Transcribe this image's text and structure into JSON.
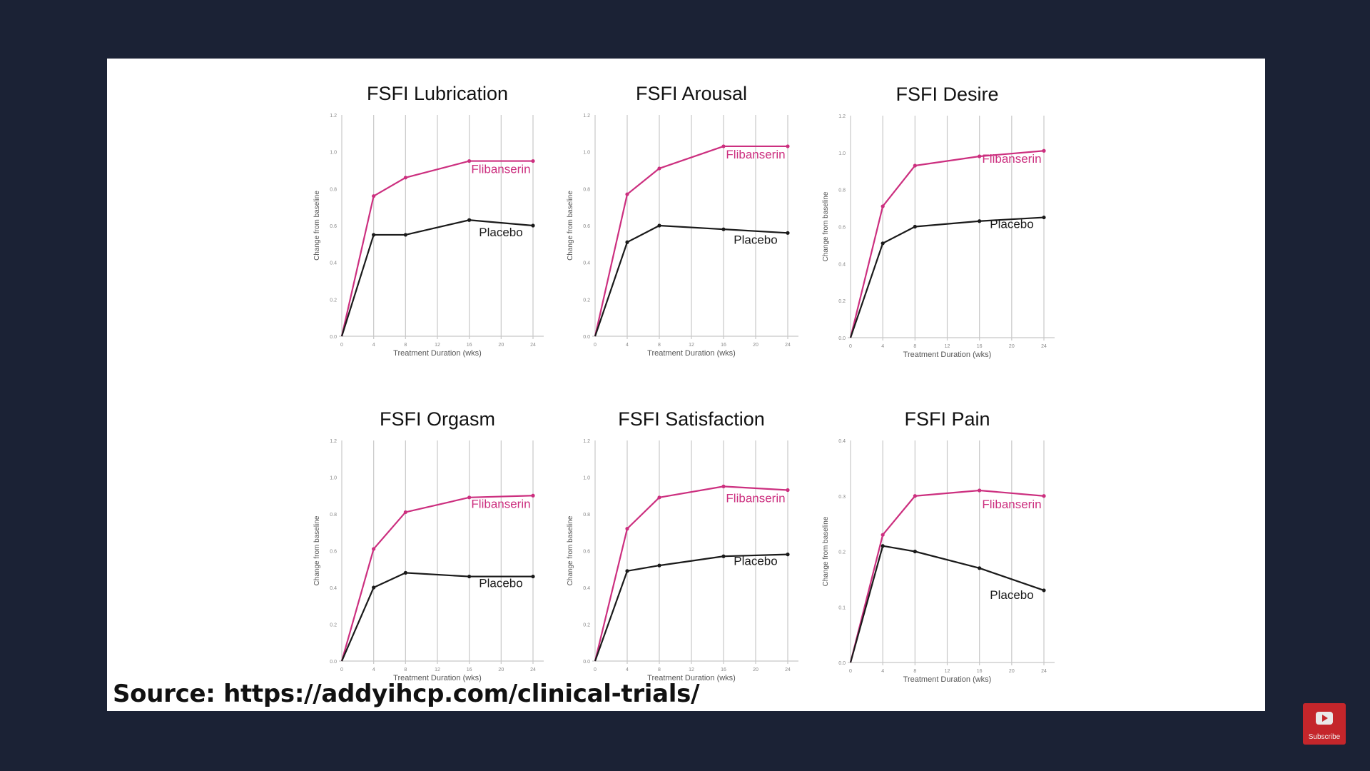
{
  "colors": {
    "flibanserin": "#cc2f7f",
    "placebo": "#1a1a1a",
    "grid": "#c8c8c8",
    "background": "#1b2235",
    "slide": "#ffffff"
  },
  "source_text": "Source: https://addyihcp.com/clinical-trials/",
  "subscribe_label": "Subscribe",
  "subscribe_icon": "play-icon",
  "chart_data": [
    {
      "type": "line",
      "title": "FSFI Lubrication",
      "xlabel": "Treatment Duration (wks)",
      "ylabel": "Change from baseline",
      "xticks": [
        "0",
        "4",
        "8",
        "12",
        "16",
        "20",
        "24"
      ],
      "yticks": [
        "0.0",
        "0.2",
        "0.4",
        "0.6",
        "0.8",
        "1.0",
        "1.2"
      ],
      "ylim": [
        0,
        1.2
      ],
      "xlim": [
        0,
        24
      ],
      "grid": "vertical",
      "x": [
        0,
        4,
        8,
        16,
        24
      ],
      "series": [
        {
          "name": "Flibanserin",
          "values": [
            0,
            0.76,
            0.86,
            0.95,
            0.95
          ]
        },
        {
          "name": "Placebo",
          "values": [
            0,
            0.55,
            0.55,
            0.63,
            0.6
          ]
        }
      ]
    },
    {
      "type": "line",
      "title": "FSFI Arousal",
      "xlabel": "Treatment Duration (wks)",
      "ylabel": "Change from baseline",
      "xticks": [
        "0",
        "4",
        "8",
        "12",
        "16",
        "20",
        "24"
      ],
      "yticks": [
        "0.0",
        "0.2",
        "0.4",
        "0.6",
        "0.8",
        "1.0",
        "1.2"
      ],
      "ylim": [
        0,
        1.2
      ],
      "xlim": [
        0,
        24
      ],
      "grid": "vertical",
      "x": [
        0,
        4,
        8,
        16,
        24
      ],
      "series": [
        {
          "name": "Flibanserin",
          "values": [
            0,
            0.77,
            0.91,
            1.03,
            1.03
          ]
        },
        {
          "name": "Placebo",
          "values": [
            0,
            0.51,
            0.6,
            0.58,
            0.56
          ]
        }
      ]
    },
    {
      "type": "line",
      "title": "FSFI Desire",
      "xlabel": "Treatment Duration (wks)",
      "ylabel": "Change from baseline",
      "xticks": [
        "0",
        "4",
        "8",
        "12",
        "16",
        "20",
        "24"
      ],
      "yticks": [
        "0.0",
        "0.2",
        "0.4",
        "0.6",
        "0.8",
        "1.0",
        "1.2"
      ],
      "ylim": [
        0,
        1.2
      ],
      "xlim": [
        0,
        24
      ],
      "grid": "vertical",
      "x": [
        0,
        4,
        8,
        16,
        24
      ],
      "series": [
        {
          "name": "Flibanserin",
          "values": [
            0,
            0.71,
            0.93,
            0.98,
            1.01
          ]
        },
        {
          "name": "Placebo",
          "values": [
            0,
            0.51,
            0.6,
            0.63,
            0.65
          ]
        }
      ]
    },
    {
      "type": "line",
      "title": "FSFI Orgasm",
      "xlabel": "Treatment Duration (wks)",
      "ylabel": "Change from baseline",
      "xticks": [
        "0",
        "4",
        "8",
        "12",
        "16",
        "20",
        "24"
      ],
      "yticks": [
        "0.0",
        "0.2",
        "0.4",
        "0.6",
        "0.8",
        "1.0",
        "1.2"
      ],
      "ylim": [
        0,
        1.2
      ],
      "xlim": [
        0,
        24
      ],
      "grid": "vertical",
      "x": [
        0,
        4,
        8,
        16,
        24
      ],
      "series": [
        {
          "name": "Flibanserin",
          "values": [
            0,
            0.61,
            0.81,
            0.89,
            0.9
          ]
        },
        {
          "name": "Placebo",
          "values": [
            0,
            0.4,
            0.48,
            0.46,
            0.46
          ]
        }
      ]
    },
    {
      "type": "line",
      "title": "FSFI Satisfaction",
      "xlabel": "Treatment Duration (wks)",
      "ylabel": "Change from baseline",
      "xticks": [
        "0",
        "4",
        "8",
        "12",
        "16",
        "20",
        "24"
      ],
      "yticks": [
        "0.0",
        "0.2",
        "0.4",
        "0.6",
        "0.8",
        "1.0",
        "1.2"
      ],
      "ylim": [
        0,
        1.2
      ],
      "xlim": [
        0,
        24
      ],
      "grid": "vertical",
      "x": [
        0,
        4,
        8,
        16,
        24
      ],
      "series": [
        {
          "name": "Flibanserin",
          "values": [
            0,
            0.72,
            0.89,
            0.95,
            0.93
          ]
        },
        {
          "name": "Placebo",
          "values": [
            0,
            0.49,
            0.52,
            0.57,
            0.58
          ]
        }
      ]
    },
    {
      "type": "line",
      "title": "FSFI Pain",
      "xlabel": "Treatment Duration (wks)",
      "ylabel": "Change from baseline",
      "xticks": [
        "0",
        "4",
        "8",
        "12",
        "16",
        "20",
        "24"
      ],
      "yticks": [
        "0.0",
        "0.1",
        "0.2",
        "0.3",
        "0.4"
      ],
      "ylim": [
        0,
        0.4
      ],
      "xlim": [
        0,
        24
      ],
      "grid": "vertical",
      "x": [
        0,
        4,
        8,
        16,
        24
      ],
      "series": [
        {
          "name": "Flibanserin",
          "values": [
            0,
            0.23,
            0.3,
            0.31,
            0.3
          ]
        },
        {
          "name": "Placebo",
          "values": [
            0,
            0.21,
            0.2,
            0.17,
            0.13
          ]
        }
      ]
    }
  ]
}
